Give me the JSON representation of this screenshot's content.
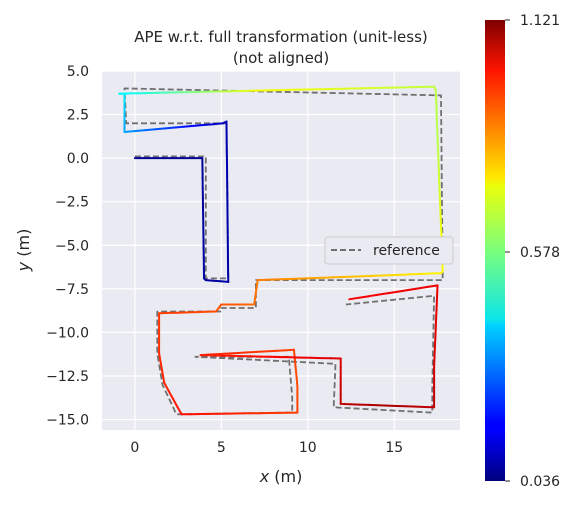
{
  "chart_data": {
    "type": "line",
    "title_line1": "APE w.r.t. full transformation (unit-less)",
    "title_line2": "(not aligned)",
    "xlabel_var": "x",
    "xlabel_unit": " (m)",
    "ylabel_var": "y",
    "ylabel_unit": " (m)",
    "xlim": [
      -1.9,
      18.8
    ],
    "ylim": [
      -15.6,
      5.0
    ],
    "xticks": [
      0,
      5,
      10,
      15
    ],
    "yticks": [
      5.0,
      2.5,
      0.0,
      -2.5,
      -5.0,
      -7.5,
      -10.0,
      -12.5,
      -15.0
    ],
    "xtick_labels": [
      "0",
      "5",
      "10",
      "15"
    ],
    "ytick_labels": [
      "5.0",
      "2.5",
      "0.0",
      "−2.5",
      "−5.0",
      "−7.5",
      "−10.0",
      "−12.5",
      "−15.0"
    ],
    "grid": true,
    "legend_placement": "center-right",
    "series": [
      {
        "name": "reference",
        "style": "dashed",
        "color": "#707070",
        "x": [
          0.0,
          4.1,
          4.1,
          5.4,
          5.3,
          -0.5,
          -0.6,
          17.7,
          17.7,
          17.8,
          7.0,
          7.0,
          5.0,
          5.0,
          1.3,
          1.3,
          1.6,
          2.4,
          9.1,
          9.1,
          8.9,
          3.5,
          11.6,
          11.5,
          17.2,
          17.2,
          17.3,
          12.2
        ],
        "y": [
          0.1,
          0.1,
          -6.9,
          -6.9,
          2.0,
          2.0,
          4.0,
          3.6,
          3.5,
          -7.0,
          -7.0,
          -8.6,
          -8.6,
          -8.8,
          -8.8,
          -11.2,
          -13.0,
          -14.7,
          -14.6,
          -13.7,
          -11.4,
          -11.4,
          -11.8,
          -14.3,
          -14.6,
          -13.1,
          -7.9,
          -8.4
        ]
      },
      {
        "name": "",
        "style": "solid",
        "x": [
          0.0,
          3.9,
          4.0,
          4.1,
          5.4,
          5.3,
          5.3,
          5.1,
          -0.6,
          -0.6,
          -0.9,
          17.3,
          17.4,
          17.8,
          17.7,
          12.6,
          7.1,
          6.9,
          5.0,
          4.7,
          1.4,
          1.4,
          1.7,
          2.7,
          9.4,
          9.4,
          9.2,
          3.8,
          11.9,
          11.9,
          17.3,
          17.3,
          17.5,
          12.4
        ],
        "y": [
          0.0,
          0.0,
          -6.9,
          -7.0,
          -7.1,
          2.0,
          2.1,
          2.0,
          1.5,
          3.7,
          3.7,
          4.1,
          3.9,
          -6.5,
          -6.6,
          -6.8,
          -7.0,
          -8.4,
          -8.4,
          -8.8,
          -8.9,
          -11.2,
          -12.9,
          -14.7,
          -14.6,
          -13.1,
          -11.0,
          -11.3,
          -11.5,
          -14.1,
          -14.3,
          -12.0,
          -7.3,
          -8.1
        ]
      }
    ],
    "colorbar": {
      "colormap": "jet",
      "min": 0.036,
      "max": 1.121,
      "tick_labels": [
        "1.121",
        "0.578",
        "0.036"
      ]
    }
  },
  "colors": {
    "plot_bg": "#eaeaf2",
    "grid": "#ffffff",
    "text": "#262626"
  },
  "legend": {
    "label": "reference"
  }
}
